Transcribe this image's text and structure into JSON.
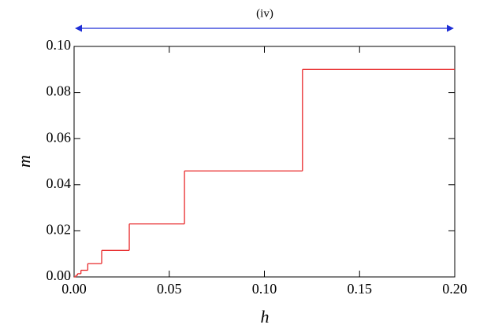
{
  "chart_data": {
    "type": "step",
    "annotation": "(iv)",
    "annotation_color": "#1f2fd6",
    "x_label": "h",
    "y_label": "m",
    "x": [
      0,
      0.0009,
      0.0018,
      0.0036,
      0.0072,
      0.0145,
      0.029,
      0.058,
      0.12,
      0.2
    ],
    "series": [
      {
        "color": "#e8292a",
        "values": [
          0,
          0.0007,
          0.0014,
          0.0029,
          0.0058,
          0.0115,
          0.023,
          0.046,
          0.09,
          0.09
        ]
      }
    ],
    "xlim": [
      0,
      0.2
    ],
    "ylim": [
      0,
      0.1
    ],
    "xticks": [
      {
        "value": 0,
        "label": "0.00"
      },
      {
        "value": 0.05,
        "label": "0.05"
      },
      {
        "value": 0.1,
        "label": "0.10"
      },
      {
        "value": 0.15,
        "label": "0.15"
      },
      {
        "value": 0.2,
        "label": "0.20"
      }
    ],
    "yticks": [
      {
        "value": 0,
        "label": "0.00"
      },
      {
        "value": 0.02,
        "label": "0.02"
      },
      {
        "value": 0.04,
        "label": "0.04"
      },
      {
        "value": 0.06,
        "label": "0.06"
      },
      {
        "value": 0.08,
        "label": "0.08"
      },
      {
        "value": 0.1,
        "label": "0.10"
      }
    ]
  }
}
